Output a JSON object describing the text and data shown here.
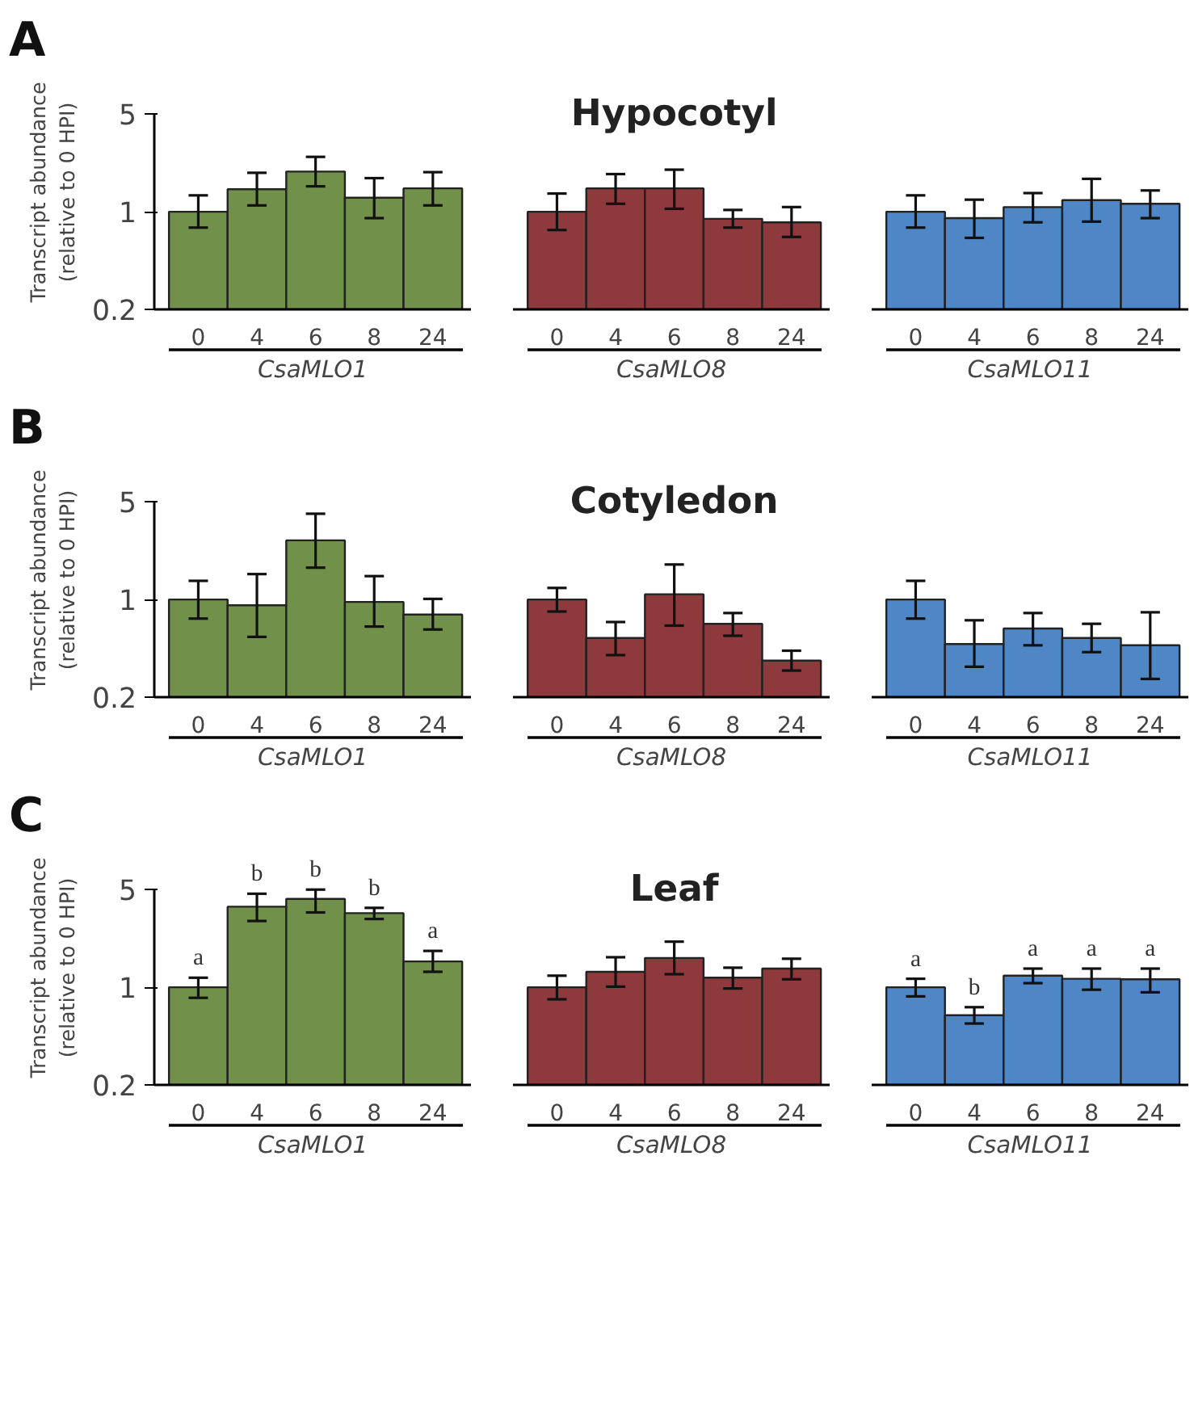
{
  "chart_data": [
    {
      "type": "bar",
      "annotations": [
        "A"
      ],
      "ylabel": "Transcript abundance\n(relative to 0 HPI)",
      "xlabel": "CsaMLO1",
      "log": true,
      "ylim": [
        0.2,
        5
      ],
      "yticks": [
        0.2,
        1,
        5
      ],
      "grid": false,
      "categories": [
        "0",
        "4",
        "6",
        "8",
        "24"
      ],
      "color": "#71914a",
      "values": [
        1.0,
        1.45,
        1.94,
        1.26,
        1.47
      ],
      "errors": [
        [
          0.77,
          1.31
        ],
        [
          1.11,
          1.9
        ],
        [
          1.52,
          2.47
        ],
        [
          0.9,
          1.74
        ],
        [
          1.11,
          1.92
        ]
      ]
    },
    {
      "type": "bar",
      "title": "Hypocotyl",
      "xlabel": "CsaMLO8",
      "log": true,
      "ylim": [
        0.2,
        5
      ],
      "tick_labels": "x",
      "grid": false,
      "categories": [
        "0",
        "4",
        "6",
        "8",
        "24"
      ],
      "color": "#8e3a3c",
      "values": [
        1.0,
        1.47,
        1.47,
        0.89,
        0.84
      ],
      "errors": [
        [
          0.74,
          1.35
        ],
        [
          1.14,
          1.86
        ],
        [
          1.05,
          2.0
        ],
        [
          0.77,
          1.03
        ],
        [
          0.66,
          1.08
        ]
      ]
    },
    {
      "type": "bar",
      "xlabel": "CsaMLO11",
      "log": true,
      "ylim": [
        0.2,
        5
      ],
      "tick_labels": "x",
      "grid": false,
      "categories": [
        "0",
        "4",
        "6",
        "8",
        "24"
      ],
      "color": "#4f86c6",
      "values": [
        1.0,
        0.9,
        1.08,
        1.21,
        1.14
      ],
      "errors": [
        [
          0.77,
          1.31
        ],
        [
          0.65,
          1.22
        ],
        [
          0.84,
          1.36
        ],
        [
          0.85,
          1.72
        ],
        [
          0.9,
          1.42
        ]
      ]
    },
    {
      "type": "bar",
      "annotations": [
        "B"
      ],
      "ylabel": "Transcript abundance\n(relative to 0 HPI)",
      "xlabel": "CsaMLO1",
      "log": true,
      "ylim": [
        0.2,
        5
      ],
      "yticks": [
        0.2,
        1,
        5
      ],
      "grid": false,
      "categories": [
        "0",
        "4",
        "6",
        "8",
        "24"
      ],
      "color": "#71914a",
      "values": [
        1.0,
        0.91,
        2.65,
        0.96,
        0.78
      ],
      "errors": [
        [
          0.73,
          1.36
        ],
        [
          0.54,
          1.52
        ],
        [
          1.69,
          4.11
        ],
        [
          0.64,
          1.47
        ],
        [
          0.61,
          1.01
        ]
      ]
    },
    {
      "type": "bar",
      "title": "Cotyledon",
      "xlabel": "CsaMLO8",
      "log": true,
      "ylim": [
        0.2,
        5
      ],
      "tick_labels": "x",
      "grid": false,
      "categories": [
        "0",
        "4",
        "6",
        "8",
        "24"
      ],
      "color": "#8e3a3c",
      "values": [
        1.0,
        0.53,
        1.09,
        0.67,
        0.365
      ],
      "errors": [
        [
          0.82,
          1.21
        ],
        [
          0.4,
          0.69
        ],
        [
          0.65,
          1.78
        ],
        [
          0.55,
          0.8
        ],
        [
          0.31,
          0.43
        ]
      ]
    },
    {
      "type": "bar",
      "xlabel": "CsaMLO11",
      "log": true,
      "ylim": [
        0.2,
        5
      ],
      "tick_labels": "x",
      "grid": false,
      "categories": [
        "0",
        "4",
        "6",
        "8",
        "24"
      ],
      "color": "#4f86c6",
      "values": [
        1.0,
        0.48,
        0.62,
        0.53,
        0.47
      ],
      "errors": [
        [
          0.73,
          1.36
        ],
        [
          0.33,
          0.71
        ],
        [
          0.47,
          0.8
        ],
        [
          0.42,
          0.67
        ],
        [
          0.27,
          0.81
        ]
      ]
    },
    {
      "type": "bar",
      "annotations": [
        "C"
      ],
      "ylabel": "Transcript abundance\n(relative to 0 HPI)",
      "xlabel": "CsaMLO1",
      "log": true,
      "ylim": [
        0.2,
        5
      ],
      "yticks": [
        0.2,
        1,
        5
      ],
      "grid": false,
      "categories": [
        "0",
        "4",
        "6",
        "8",
        "24"
      ],
      "color": "#71914a",
      "values": [
        1.0,
        3.77,
        4.29,
        3.39,
        1.53
      ],
      "errors": [
        [
          0.84,
          1.17
        ],
        [
          2.98,
          4.67
        ],
        [
          3.43,
          5.0
        ],
        [
          3.08,
          3.7
        ],
        [
          1.29,
          1.82
        ]
      ],
      "value_labels": [
        "a",
        "b",
        "b",
        "b",
        "a"
      ]
    },
    {
      "type": "bar",
      "title": "Leaf",
      "xlabel": "CsaMLO8",
      "log": true,
      "ylim": [
        0.2,
        5
      ],
      "tick_labels": "x",
      "grid": false,
      "categories": [
        "0",
        "4",
        "6",
        "8",
        "24"
      ],
      "color": "#8e3a3c",
      "values": [
        1.0,
        1.29,
        1.62,
        1.17,
        1.36
      ],
      "errors": [
        [
          0.82,
          1.21
        ],
        [
          1.01,
          1.64
        ],
        [
          1.24,
          2.12
        ],
        [
          0.98,
          1.38
        ],
        [
          1.14,
          1.6
        ]
      ]
    },
    {
      "type": "bar",
      "xlabel": "CsaMLO11",
      "log": true,
      "ylim": [
        0.2,
        5
      ],
      "tick_labels": "x",
      "grid": false,
      "categories": [
        "0",
        "4",
        "6",
        "8",
        "24"
      ],
      "color": "#4f86c6",
      "values": [
        1.0,
        0.63,
        1.21,
        1.15,
        1.14
      ],
      "errors": [
        [
          0.86,
          1.15
        ],
        [
          0.55,
          0.72
        ],
        [
          1.07,
          1.36
        ],
        [
          0.96,
          1.36
        ],
        [
          0.92,
          1.36
        ]
      ],
      "value_labels": [
        "a",
        "b",
        "a",
        "a",
        "a"
      ]
    }
  ]
}
